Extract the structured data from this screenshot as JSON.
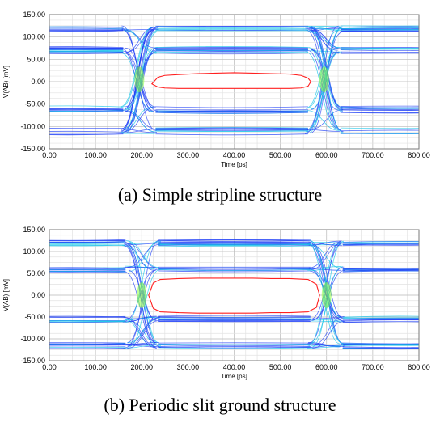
{
  "chart_data": [
    {
      "type": "line",
      "title": "",
      "caption": "(a) Simple stripline structure",
      "xlabel": "Time [ps]",
      "ylabel": "V(AB) [mV]",
      "xlim": [
        0,
        800
      ],
      "ylim": [
        -150,
        150
      ],
      "x_ticks": [
        "0.00",
        "100.00",
        "200.00",
        "300.00",
        "400.00",
        "500.00",
        "600.00",
        "700.00",
        "800.00"
      ],
      "y_ticks": [
        "150.00",
        "100.00",
        "50.00",
        "0.00",
        "-50.00",
        "-100.00",
        "-150.00"
      ],
      "grid": true,
      "eye_diagram": {
        "crossings_ps": [
          195,
          595
        ],
        "crossing_level_mv": 5,
        "levels_mv": [
          118,
          70,
          -62,
          -110
        ],
        "eye_contour": {
          "x": [
            222,
            235,
            250,
            280,
            320,
            360,
            400,
            440,
            480,
            520,
            545,
            560,
            566
          ],
          "upper_y": [
            -5,
            10,
            14,
            16,
            18,
            19,
            20,
            19,
            18,
            17,
            14,
            8,
            0
          ],
          "lower_y": [
            -5,
            -12,
            -14,
            -15,
            -15,
            -15,
            -15,
            -15,
            -15,
            -15,
            -14,
            -10,
            0
          ]
        }
      },
      "colors": {
        "traces": "#1f3ff5",
        "traces_dense": "#14c4e8",
        "crossing": "#8cff40",
        "contour": "#ff2020",
        "grid": "#c8c8c8"
      }
    },
    {
      "type": "line",
      "title": "",
      "caption": "(b) Periodic slit ground structure",
      "xlabel": "Time [ps]",
      "ylabel": "V(AB) [mV]",
      "xlim": [
        0,
        800
      ],
      "ylim": [
        -150,
        150
      ],
      "x_ticks": [
        "0.00",
        "100.00",
        "200.00",
        "300.00",
        "400.00",
        "500.00",
        "600.00",
        "700.00",
        "800.00"
      ],
      "y_ticks": [
        "150.00",
        "100.00",
        "50.00",
        "0.00",
        "-50.00",
        "-100.00",
        "-150.00"
      ],
      "grid": true,
      "eye_diagram": {
        "crossings_ps": [
          200,
          600
        ],
        "crossing_level_mv": 0,
        "levels_mv": [
          120,
          60,
          -55,
          -115
        ],
        "eye_contour": {
          "x": [
            215,
            225,
            240,
            280,
            320,
            360,
            400,
            440,
            480,
            520,
            560,
            578,
            585
          ],
          "upper_y": [
            0,
            28,
            36,
            38,
            39,
            39,
            39,
            39,
            38,
            38,
            36,
            25,
            0
          ],
          "lower_y": [
            0,
            -30,
            -38,
            -40,
            -41,
            -41,
            -41,
            -41,
            -40,
            -40,
            -38,
            -28,
            0
          ]
        }
      },
      "colors": {
        "traces": "#1f3ff5",
        "traces_dense": "#14c4e8",
        "crossing": "#8cff40",
        "contour": "#ff2020",
        "grid": "#c8c8c8"
      }
    }
  ]
}
